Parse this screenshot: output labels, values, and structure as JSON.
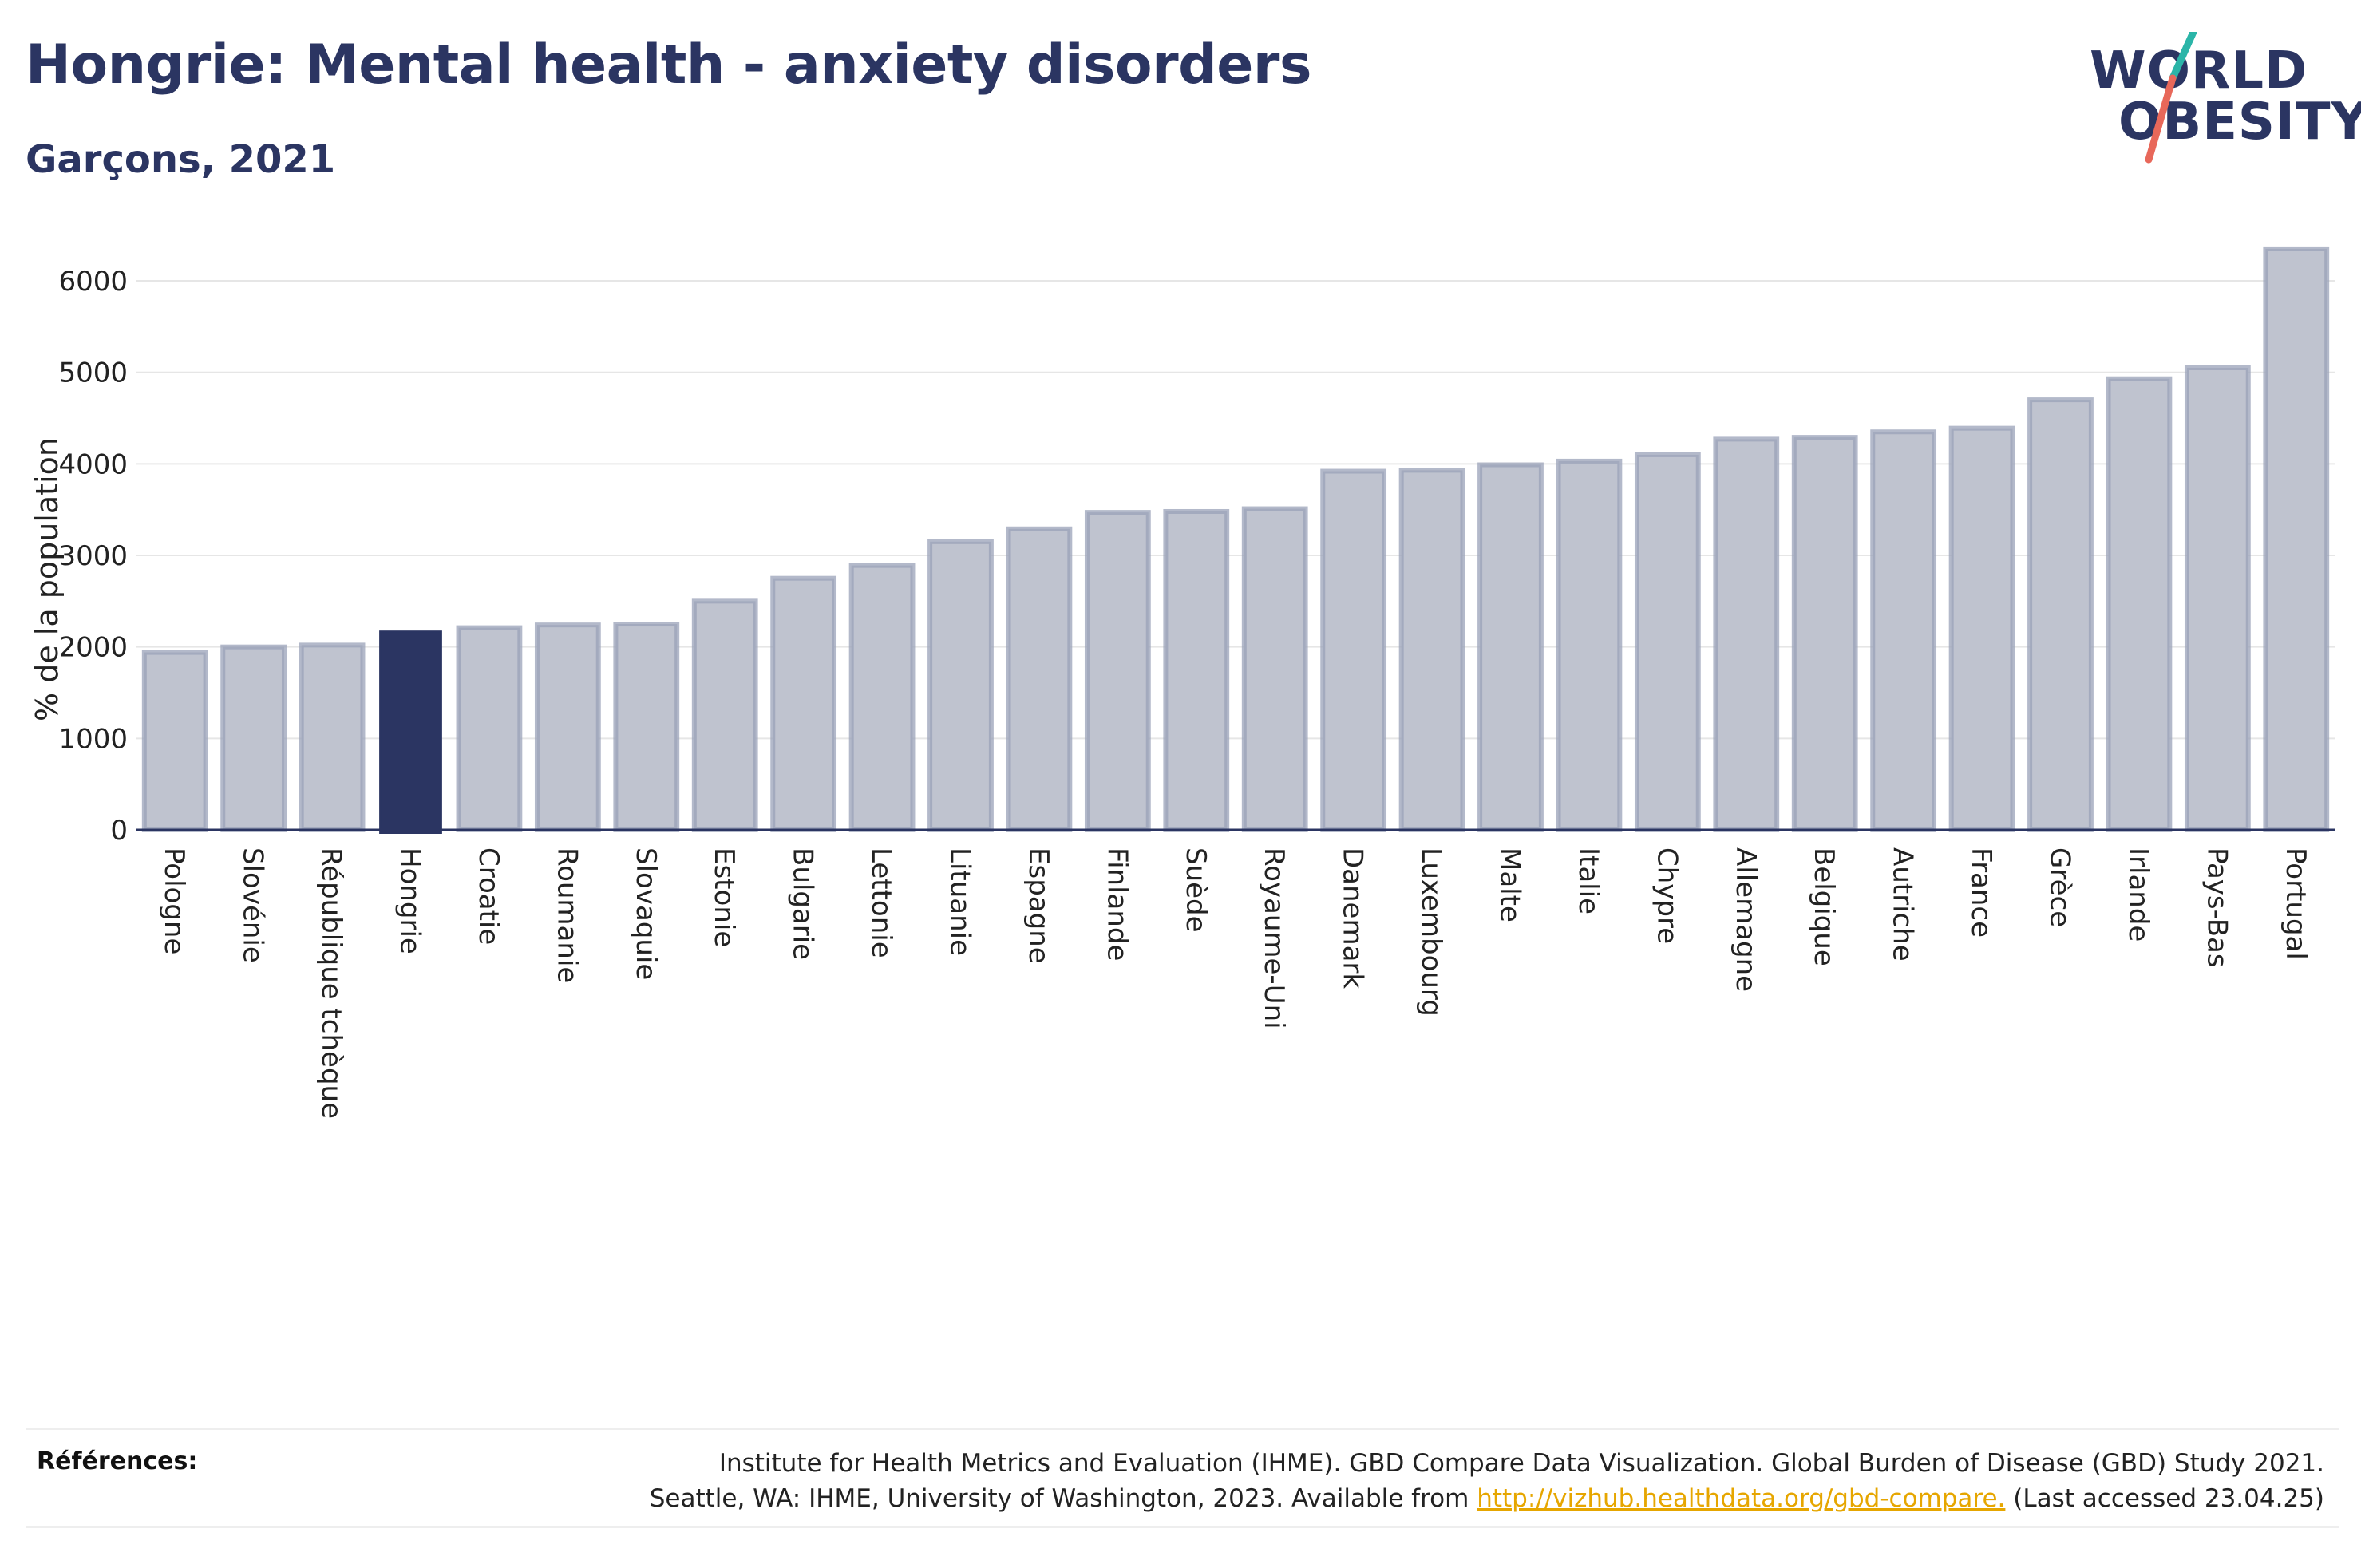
{
  "header": {
    "title": "Hongrie: Mental health - anxiety disorders",
    "subtitle": "Garçons, 2021"
  },
  "logo": {
    "line1": "WORLD",
    "line2": "OBESITY",
    "colors": {
      "text": "#2b3562",
      "slash_top": "#2bb5a8",
      "slash_bottom": "#e8685a"
    }
  },
  "colors": {
    "highlight_bar": "#2b3562",
    "other_bar_fill": "#bfc3cf",
    "other_bar_stroke": "#9aa1b8",
    "gridline": "#e6e6e6",
    "axis": "#2b3562",
    "link": "#e6a600"
  },
  "chart_data": {
    "type": "bar",
    "title": "Hongrie: Mental health - anxiety disorders",
    "subtitle": "Garçons, 2021",
    "ylabel": "% de la population",
    "xlabel": "",
    "ylim": [
      0,
      6500
    ],
    "yticks": [
      0,
      1000,
      2000,
      3000,
      4000,
      5000,
      6000
    ],
    "grid": true,
    "highlight": "Hongrie",
    "categories": [
      "Pologne",
      "Slovénie",
      "République tchèque",
      "Hongrie",
      "Croatie",
      "Roumanie",
      "Slovaquie",
      "Estonie",
      "Bulgarie",
      "Lettonie",
      "Lituanie",
      "Espagne",
      "Finlande",
      "Suède",
      "Royaume-Uni",
      "Danemark",
      "Luxembourg",
      "Malte",
      "Italie",
      "Chypre",
      "Allemagne",
      "Belgique",
      "Autriche",
      "France",
      "Grèce",
      "Irlande",
      "Pays-Bas",
      "Portugal"
    ],
    "values": [
      1940,
      2000,
      2020,
      2170,
      2210,
      2240,
      2250,
      2500,
      2750,
      2890,
      3150,
      3290,
      3470,
      3480,
      3510,
      3920,
      3930,
      3990,
      4030,
      4100,
      4270,
      4290,
      4350,
      4390,
      4700,
      4930,
      5050,
      6350
    ]
  },
  "references": {
    "label": "Références:",
    "line1": "Institute for Health Metrics and Evaluation (IHME). GBD Compare Data Visualization. Global Burden of Disease (GBD) Study 2021.",
    "line2_prefix": "Seattle, WA: IHME, University of Washington, 2023. Available from ",
    "link": "http://vizhub.healthdata.org/gbd-compare.",
    "line2_suffix": " (Last accessed 23.04.25)"
  }
}
